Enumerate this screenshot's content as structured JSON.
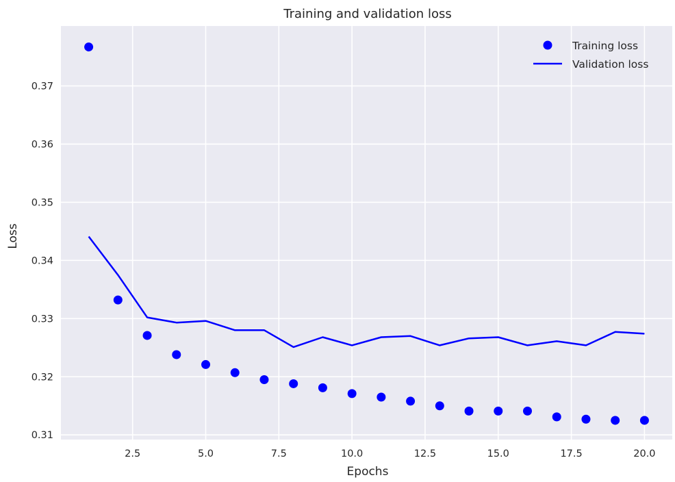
{
  "chart_data": {
    "type": "line",
    "title": "Training and validation loss",
    "xlabel": "Epochs",
    "ylabel": "Loss",
    "xlim": [
      0.05,
      20.95
    ],
    "ylim": [
      0.3092,
      0.3803
    ],
    "xticks": [
      2.5,
      5.0,
      7.5,
      10.0,
      12.5,
      15.0,
      17.5,
      20.0
    ],
    "xtick_labels": [
      "2.5",
      "5.0",
      "7.5",
      "10.0",
      "12.5",
      "15.0",
      "17.5",
      "20.0"
    ],
    "yticks": [
      0.31,
      0.32,
      0.33,
      0.34,
      0.35,
      0.36,
      0.37
    ],
    "ytick_labels": [
      "0.31",
      "0.32",
      "0.33",
      "0.34",
      "0.35",
      "0.36",
      "0.37"
    ],
    "grid": true,
    "legend_position": "top-right",
    "x": [
      1,
      2,
      3,
      4,
      5,
      6,
      7,
      8,
      9,
      10,
      11,
      12,
      13,
      14,
      15,
      16,
      17,
      18,
      19,
      20
    ],
    "series": [
      {
        "name": "Training loss",
        "style": "dots",
        "color": "#0000ff",
        "values": [
          0.3767,
          0.3332,
          0.3271,
          0.3238,
          0.3221,
          0.3207,
          0.3195,
          0.3188,
          0.3181,
          0.3171,
          0.3165,
          0.3158,
          0.315,
          0.3141,
          0.3141,
          0.3141,
          0.3131,
          0.3127,
          0.3125,
          0.3125
        ]
      },
      {
        "name": "Validation loss",
        "style": "line",
        "color": "#0000ff",
        "values": [
          0.3441,
          0.3375,
          0.3302,
          0.3293,
          0.3296,
          0.328,
          0.328,
          0.3251,
          0.3268,
          0.3254,
          0.3268,
          0.327,
          0.3254,
          0.3266,
          0.3268,
          0.3254,
          0.3261,
          0.3254,
          0.3277,
          0.3274
        ]
      }
    ],
    "colors": {
      "background": "#eaeaf2",
      "grid": "#ffffff",
      "text": "#262626"
    }
  }
}
